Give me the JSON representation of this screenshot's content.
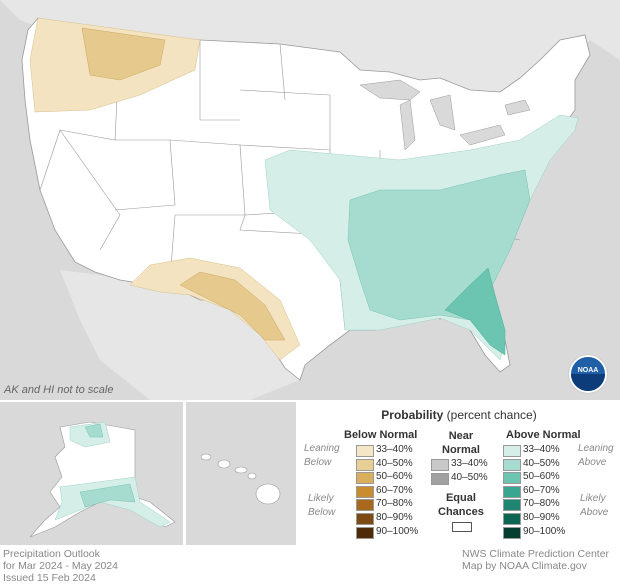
{
  "map": {
    "scale_note": "AK and HI not to scale",
    "logo_text": "NOAA",
    "colors": {
      "background": "#d9d9d9",
      "land": "#ffffff",
      "below_33_40": "#f3e3c0",
      "below_40_50": "#e6c98d",
      "above_33_40": "#d6eee8",
      "above_40_50": "#a6dccf",
      "above_50_60": "#6cc5b0"
    }
  },
  "legend": {
    "title_bold": "Probability",
    "title_rest": " (percent chance)",
    "below": {
      "heading": "Below Normal",
      "leaning": [
        "Leaning",
        "Below"
      ],
      "likely": [
        "Likely",
        "Below"
      ],
      "items": [
        {
          "label": "33–40%",
          "color": "#f5e6c8"
        },
        {
          "label": "40–50%",
          "color": "#e8cf95"
        },
        {
          "label": "50–60%",
          "color": "#d9af5b"
        },
        {
          "label": "60–70%",
          "color": "#c98d2f"
        },
        {
          "label": "70–80%",
          "color": "#a8691c"
        },
        {
          "label": "80–90%",
          "color": "#7c4a12"
        },
        {
          "label": "90–100%",
          "color": "#4d2b08"
        }
      ]
    },
    "near": {
      "heading": [
        "Near",
        "Normal"
      ],
      "items": [
        {
          "label": "33–40%",
          "color": "#c8c8c8"
        },
        {
          "label": "40–50%",
          "color": "#a0a0a0"
        }
      ]
    },
    "equal": {
      "heading": [
        "Equal",
        "Chances"
      ]
    },
    "above": {
      "heading": "Above Normal",
      "leaning": [
        "Leaning",
        "Above"
      ],
      "likely": [
        "Likely",
        "Above"
      ],
      "items": [
        {
          "label": "33–40%",
          "color": "#d6eee8"
        },
        {
          "label": "40–50%",
          "color": "#a6dccf"
        },
        {
          "label": "50–60%",
          "color": "#6cc5b0"
        },
        {
          "label": "60–70%",
          "color": "#3ba68f"
        },
        {
          "label": "70–80%",
          "color": "#1f8570"
        },
        {
          "label": "80–90%",
          "color": "#0d6553"
        },
        {
          "label": "90–100%",
          "color": "#053d31"
        }
      ]
    }
  },
  "footer": {
    "left": [
      "Precipitation Outlook",
      "for Mar 2024 - May 2024",
      "Issued 15 Feb 2024"
    ],
    "right": [
      "NWS Climate Prediction Center",
      "Map by NOAA Climate.gov"
    ]
  }
}
